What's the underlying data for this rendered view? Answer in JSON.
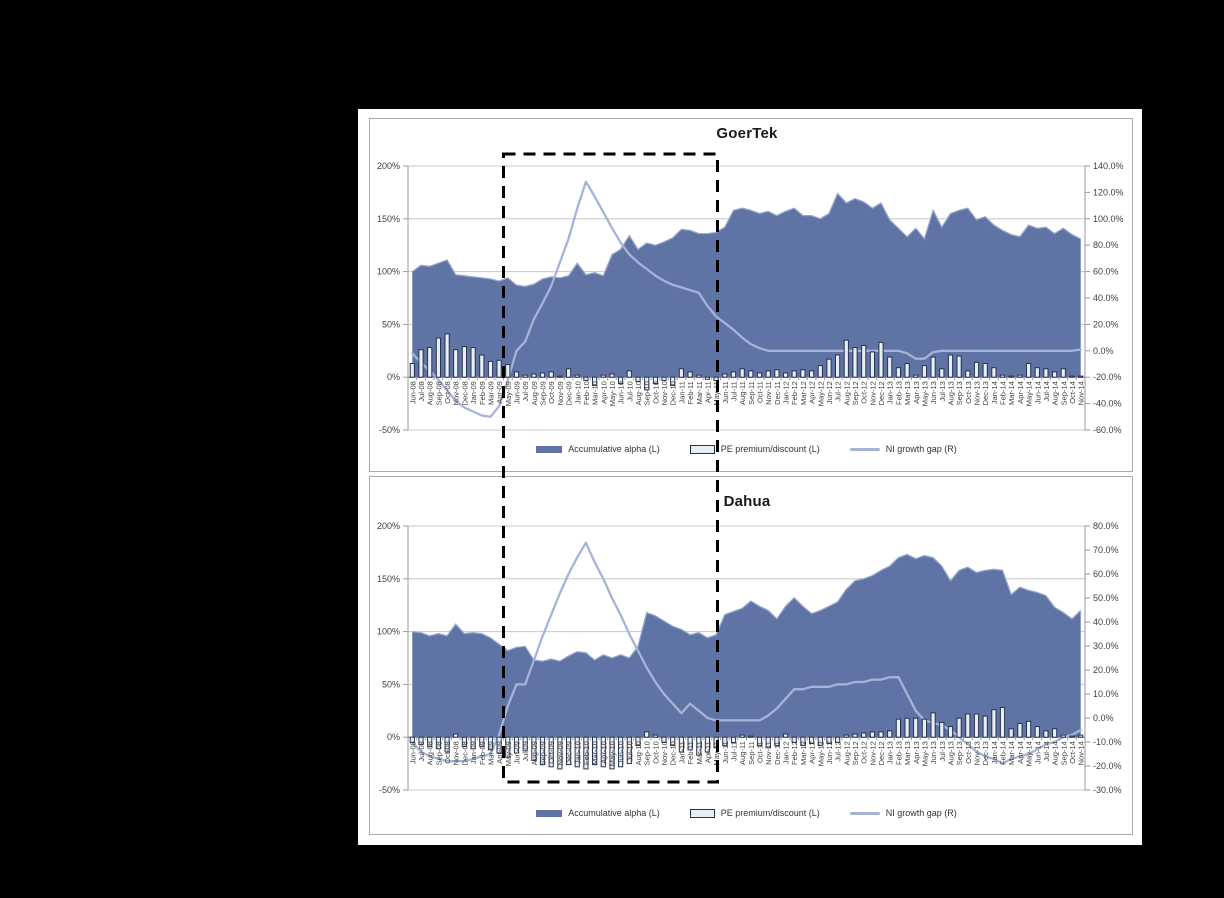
{
  "colors": {
    "page_background": "#000000",
    "panel_background": "#ffffff",
    "panel_border": "#ababab",
    "area": "#5F73A5",
    "area_edge": "#93A7CC",
    "bar_fill": "#E9EDF5",
    "bar_stroke": "#25344F",
    "line": "#A5B4D6",
    "gridline": "#C8C8C8",
    "zero_axis": "#707070",
    "axis_line": "#9A9A9A",
    "tick_label": "#404040",
    "title": "#1a1a1a",
    "dashed_box": "#000000"
  },
  "months": [
    "Jun-08",
    "Jul-08",
    "Aug-08",
    "Sep-08",
    "Oct-08",
    "Nov-08",
    "Dec-08",
    "Jan-09",
    "Feb-09",
    "Mar-09",
    "Apr-09",
    "May-09",
    "Jun-09",
    "Jul-09",
    "Aug-09",
    "Sep-09",
    "Oct-09",
    "Nov-09",
    "Dec-09",
    "Jan-10",
    "Feb-10",
    "Mar-10",
    "Apr-10",
    "May-10",
    "Jun-10",
    "Jul-10",
    "Aug-10",
    "Sep-10",
    "Oct-10",
    "Nov-10",
    "Dec-10",
    "Jan-11",
    "Feb-11",
    "Mar-11",
    "Apr-11",
    "May-11",
    "Jun-11",
    "Jul-11",
    "Aug-11",
    "Sep-11",
    "Oct-11",
    "Nov-11",
    "Dec-11",
    "Jan-12",
    "Feb-12",
    "Mar-12",
    "Apr-12",
    "May-12",
    "Jun-12",
    "Jul-12",
    "Aug-12",
    "Sep-12",
    "Oct-12",
    "Nov-12",
    "Dec-12",
    "Jan-13",
    "Feb-13",
    "Mar-13",
    "Apr-13",
    "May-13",
    "Jun-13",
    "Jul-13",
    "Aug-13",
    "Sep-13",
    "Oct-13",
    "Nov-13",
    "Dec-13",
    "Jan-14",
    "Feb-14",
    "Mar-14",
    "Apr-14",
    "May-14",
    "Jun-14",
    "Jul-14",
    "Aug-14",
    "Sep-14",
    "Oct-14",
    "Nov-14"
  ],
  "annotation": {
    "type": "dashed-box",
    "x_start": "May-09",
    "x_end": "Jun-11",
    "spans_both_charts": true
  },
  "chart_data": [
    {
      "type": "combo",
      "title": "GoerTek",
      "legend_position": "bottom",
      "grid": true,
      "left_axis": {
        "min": -50,
        "max": 200,
        "tick_values": [
          200,
          150,
          100,
          50,
          0,
          -50
        ],
        "tick_labels": [
          "200%",
          "150%",
          "100%",
          "50%",
          "0%",
          "-50%"
        ]
      },
      "right_axis": {
        "min": -60,
        "max": 140,
        "tick_values": [
          140,
          120,
          100,
          80,
          60,
          40,
          20,
          0,
          -20,
          -40,
          -60
        ],
        "tick_labels": [
          "140.0%",
          "120.0%",
          "100.0%",
          "80.0%",
          "60.0%",
          "40.0%",
          "20.0%",
          "0.0%",
          "-20.0%",
          "-40.0%",
          "-60.0%"
        ]
      },
      "series": [
        {
          "name": "Accumulative alpha (L)",
          "type": "area",
          "axis": "left",
          "values": [
            100,
            106,
            105,
            108,
            111,
            97,
            96,
            95,
            94,
            93,
            91,
            94,
            87,
            86,
            88,
            93,
            95,
            94,
            96,
            108,
            97,
            99,
            96,
            116,
            121,
            134,
            121,
            127,
            125,
            128,
            132,
            140,
            139,
            136,
            136,
            137,
            142,
            158,
            160,
            158,
            155,
            157,
            153,
            157,
            160,
            153,
            153,
            150,
            155,
            174,
            165,
            169,
            166,
            160,
            165,
            149,
            141,
            133,
            141,
            131,
            158,
            142,
            155,
            158,
            160,
            149,
            152,
            144,
            139,
            135,
            133,
            144,
            141,
            142,
            136,
            141,
            135,
            131
          ]
        },
        {
          "name": "PE premium/discount (L)",
          "type": "bar",
          "axis": "left",
          "values": [
            13,
            26,
            28,
            37,
            41,
            26,
            29,
            28,
            21,
            15,
            16,
            12,
            5,
            2,
            3,
            4,
            5,
            1,
            8,
            2,
            -3,
            -8,
            2,
            3,
            -6,
            6,
            -4,
            -12,
            -6,
            -3,
            -8,
            8,
            5,
            2,
            -2,
            -3,
            3,
            5,
            8,
            6,
            4,
            6,
            7,
            4,
            6,
            7,
            6,
            11,
            17,
            21,
            35,
            28,
            30,
            24,
            33,
            19,
            9,
            13,
            2,
            11,
            19,
            8,
            21,
            20,
            6,
            14,
            13,
            9,
            2,
            1,
            2,
            13,
            9,
            8,
            5,
            8,
            1,
            1
          ]
        },
        {
          "name": "NI growth gap (R)",
          "type": "line",
          "axis": "right",
          "values": [
            -2,
            -9,
            -15,
            -22,
            -30,
            -38,
            -43,
            -46,
            -49,
            -50,
            -42,
            -22,
            0,
            7,
            24,
            36,
            49,
            67,
            85,
            108,
            128,
            117,
            105,
            93,
            82,
            73,
            67,
            62,
            57,
            53,
            50,
            48,
            46,
            44,
            34,
            26,
            21,
            16,
            10,
            5,
            2,
            0,
            0,
            0,
            0,
            0,
            0,
            0,
            0,
            0,
            0,
            0,
            0,
            0,
            0,
            0,
            0,
            -2,
            -6,
            -6,
            -1,
            0,
            0,
            0,
            0,
            0,
            0,
            0,
            0,
            0,
            0,
            0,
            0,
            0,
            0,
            0,
            0,
            1
          ]
        }
      ]
    },
    {
      "type": "combo",
      "title": "Dahua",
      "legend_position": "bottom",
      "grid": true,
      "left_axis": {
        "min": -50,
        "max": 200,
        "tick_values": [
          200,
          150,
          100,
          50,
          0,
          -50
        ],
        "tick_labels": [
          "200%",
          "150%",
          "100%",
          "50%",
          "0%",
          "-50%"
        ]
      },
      "right_axis": {
        "min": -30,
        "max": 80,
        "tick_values": [
          80,
          70,
          60,
          50,
          40,
          30,
          20,
          10,
          0,
          -10,
          -20,
          -30
        ],
        "tick_labels": [
          "80.0%",
          "70.0%",
          "60.0%",
          "50.0%",
          "40.0%",
          "30.0%",
          "20.0%",
          "10.0%",
          "0.0%",
          "-10.0%",
          "-20.0%",
          "-30.0%"
        ]
      },
      "series": [
        {
          "name": "Accumulative alpha (L)",
          "type": "area",
          "axis": "left",
          "values": [
            100,
            99,
            96,
            98,
            96,
            107,
            98,
            99,
            98,
            94,
            88,
            82,
            85,
            86,
            73,
            72,
            74,
            72,
            77,
            81,
            80,
            73,
            78,
            75,
            78,
            75,
            86,
            118,
            115,
            110,
            105,
            102,
            97,
            99,
            94,
            97,
            116,
            119,
            122,
            129,
            124,
            120,
            112,
            124,
            132,
            124,
            117,
            120,
            124,
            128,
            140,
            148,
            150,
            153,
            158,
            162,
            170,
            173,
            169,
            172,
            170,
            162,
            148,
            158,
            161,
            156,
            158,
            159,
            158,
            135,
            142,
            139,
            137,
            134,
            123,
            118,
            112,
            120
          ]
        },
        {
          "name": "PE premium/discount (L)",
          "type": "bar",
          "axis": "left",
          "values": [
            -5,
            -7,
            -9,
            -11,
            -14,
            3,
            -9,
            -11,
            -9,
            -12,
            -15,
            -19,
            -15,
            -13,
            -22,
            -26,
            -28,
            -30,
            -26,
            -28,
            -30,
            -26,
            -28,
            -30,
            -28,
            -25,
            -8,
            5,
            2,
            -5,
            -8,
            -14,
            -12,
            -17,
            -14,
            -10,
            -8,
            -5,
            2,
            1,
            -8,
            -10,
            -8,
            3,
            -5,
            -8,
            -6,
            -8,
            -6,
            -5,
            2,
            3,
            4,
            5,
            5,
            6,
            17,
            18,
            18,
            17,
            23,
            14,
            10,
            18,
            22,
            22,
            20,
            26,
            28,
            8,
            13,
            15,
            10,
            6,
            8,
            2,
            1,
            2
          ]
        },
        {
          "name": "NI growth gap (R)",
          "type": "line",
          "axis": "right",
          "values": [
            -10,
            -14,
            -16,
            -17,
            -18,
            -18,
            -18,
            -17,
            -16,
            -15,
            -7,
            5,
            14,
            14,
            24,
            34,
            43,
            52,
            60,
            67,
            73,
            65,
            58,
            50,
            43,
            35,
            28,
            21,
            15,
            10,
            6,
            2,
            6,
            3,
            0,
            -1,
            -1,
            -1,
            -1,
            -1,
            -1,
            1,
            4,
            8,
            12,
            12,
            13,
            13,
            13,
            14,
            14,
            15,
            15,
            16,
            16,
            17,
            17,
            10,
            3,
            -1,
            -2,
            -3,
            -5,
            -8,
            -11,
            -14,
            -16,
            -17,
            -19,
            -17,
            -16,
            -15,
            -13,
            -11,
            -10,
            -8,
            -7,
            -5
          ]
        }
      ]
    }
  ]
}
